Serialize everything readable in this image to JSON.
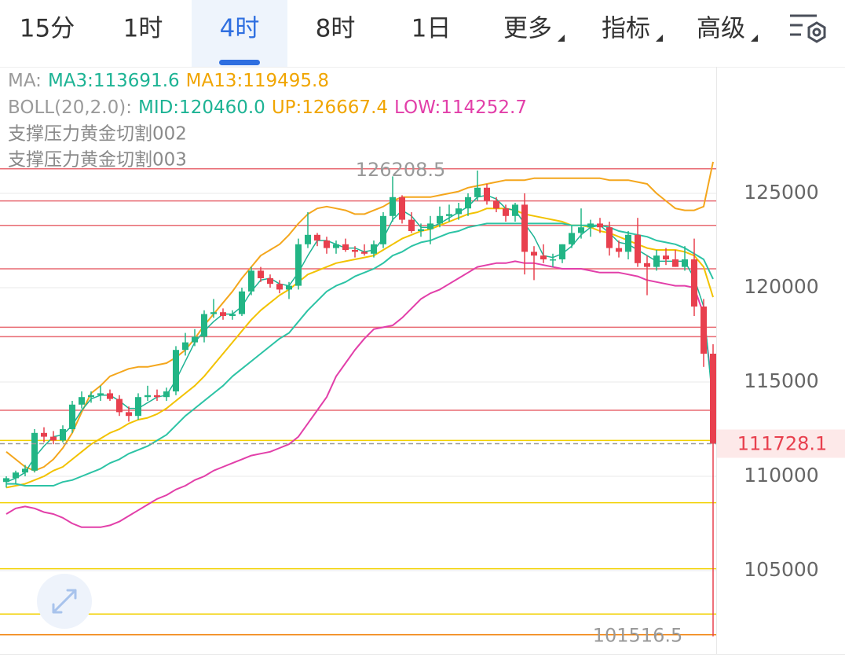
{
  "tabs": [
    {
      "label": "15分"
    },
    {
      "label": "1时"
    },
    {
      "label": "4时",
      "selected": true
    },
    {
      "label": "8时"
    },
    {
      "label": "1日"
    },
    {
      "label": "更多",
      "menu": true
    },
    {
      "label": "指标",
      "menu": true
    },
    {
      "label": "高级",
      "menu": true
    }
  ],
  "chart_data": {
    "type": "candlestick",
    "indicators": [
      {
        "label": "MA:",
        "items": [
          {
            "text": "MA3:113691.6",
            "color": "#1db394"
          },
          {
            "text": "MA13:119495.8",
            "color": "#f0a500"
          }
        ]
      },
      {
        "label": "BOLL(20,2.0):",
        "items": [
          {
            "text": "MID:120460.0",
            "color": "#1db394"
          },
          {
            "text": "UP:126667.4",
            "color": "#f0a500"
          },
          {
            "text": "LOW:114252.7",
            "color": "#e23fa9"
          }
        ]
      }
    ],
    "studies": [
      "支撑压力黄金切割002",
      "支撑压力黄金切割003"
    ],
    "ylim": [
      100667,
      131708
    ],
    "yticks": [
      125000,
      120000,
      115000,
      110000,
      105000
    ],
    "grid": true,
    "up_color": "#22b585",
    "down_color": "#e8404e",
    "open": [
      109700,
      109900,
      110200,
      110300,
      112300,
      112100,
      111900,
      112500,
      113800,
      114200,
      114300,
      114400,
      114100,
      113400,
      113200,
      114200,
      114300,
      114200,
      114500,
      116700,
      117100,
      117400,
      118600,
      118700,
      118500,
      118600,
      119800,
      120900,
      120500,
      120200,
      119900,
      120100,
      122300,
      122800,
      122500,
      122100,
      122300,
      122000,
      121900,
      121800,
      122300,
      123800,
      124800,
      123600,
      123000,
      123100,
      123400,
      123800,
      123900,
      124200,
      124800,
      125300,
      124600,
      124200,
      123800,
      124400,
      121900,
      121700,
      121500,
      121500,
      122300,
      122900,
      123200,
      123400,
      123200,
      122100,
      121900,
      122800,
      121300,
      121100,
      121700,
      121500,
      121100,
      121500,
      119000,
      116500
    ],
    "high": [
      110000,
      110300,
      110600,
      112500,
      112600,
      112400,
      112700,
      114000,
      114500,
      114500,
      114800,
      114600,
      114300,
      113700,
      114400,
      114800,
      114600,
      114700,
      116900,
      117600,
      117800,
      118800,
      119400,
      118900,
      118800,
      120000,
      121100,
      121100,
      120700,
      120400,
      120300,
      122600,
      124000,
      122900,
      122700,
      122500,
      122600,
      122200,
      122300,
      122500,
      124000,
      125900,
      124900,
      124000,
      123400,
      123800,
      124300,
      124400,
      124500,
      125000,
      126208.5,
      125500,
      124800,
      124400,
      124500,
      125000,
      122200,
      122300,
      121800,
      122300,
      123300,
      124200,
      123600,
      123700,
      123500,
      122500,
      123000,
      123700,
      121700,
      122000,
      122100,
      122000,
      122200,
      122600,
      119400,
      117000
    ],
    "low": [
      109400,
      109600,
      110000,
      110200,
      111800,
      111700,
      111800,
      112300,
      113600,
      113900,
      114000,
      114000,
      113200,
      112900,
      113000,
      114000,
      114000,
      114000,
      114300,
      116400,
      116900,
      117100,
      118400,
      118300,
      118300,
      118500,
      119600,
      120300,
      120000,
      119700,
      119400,
      119900,
      122100,
      122200,
      121800,
      121800,
      121900,
      121600,
      121700,
      121600,
      122100,
      123500,
      123400,
      122900,
      122700,
      122300,
      123200,
      123500,
      123600,
      123800,
      124600,
      124400,
      124000,
      123500,
      123500,
      120700,
      120400,
      121300,
      121100,
      121300,
      122100,
      122600,
      122700,
      122900,
      121700,
      121600,
      121500,
      121100,
      119600,
      120900,
      121200,
      121100,
      120900,
      118500,
      115800,
      101516.5
    ],
    "close": [
      109900,
      110200,
      110400,
      112300,
      112100,
      111900,
      112500,
      113800,
      114200,
      114300,
      114400,
      114100,
      113400,
      113200,
      114200,
      114300,
      114200,
      114500,
      116700,
      117100,
      117400,
      118600,
      118700,
      118500,
      118600,
      119800,
      120900,
      120500,
      120200,
      119900,
      120100,
      122300,
      122800,
      122500,
      122100,
      122300,
      122000,
      121900,
      121800,
      122300,
      123800,
      124800,
      123600,
      123000,
      123100,
      123400,
      123800,
      123900,
      124200,
      124800,
      125300,
      124600,
      124200,
      123800,
      124400,
      121900,
      121700,
      121500,
      121500,
      122300,
      122900,
      123200,
      123400,
      123200,
      122100,
      121900,
      122800,
      121300,
      121100,
      121700,
      121500,
      121100,
      121500,
      119000,
      116500,
      111728.1
    ],
    "lines": [
      {
        "color": "#f4a61c",
        "width": 2,
        "values": [
          111300,
          110900,
          110500,
          110300,
          110500,
          110900,
          111500,
          112300,
          113400,
          114400,
          114800,
          115300,
          115500,
          115700,
          115800,
          115800,
          115900,
          116000,
          116300,
          116700,
          117300,
          118000,
          118600,
          119200,
          119800,
          120500,
          121100,
          121700,
          122000,
          122300,
          122800,
          123400,
          123900,
          124200,
          124300,
          124200,
          124100,
          123900,
          123900,
          124100,
          124300,
          124600,
          124800,
          124800,
          124800,
          124800,
          124900,
          125000,
          125100,
          125300,
          125400,
          125500,
          125600,
          125700,
          125700,
          125700,
          125800,
          125800,
          125800,
          125800,
          125800,
          125800,
          125800,
          125800,
          125700,
          125700,
          125700,
          125600,
          125500,
          125000,
          124600,
          124200,
          124100,
          124100,
          124300,
          126667.4
        ]
      },
      {
        "color": "#f2c200",
        "width": 2,
        "values": [
          109400,
          109500,
          109600,
          109800,
          110000,
          110300,
          110500,
          110900,
          111300,
          111700,
          112000,
          112300,
          112500,
          112800,
          113000,
          113100,
          113300,
          113600,
          114000,
          114400,
          114800,
          115300,
          115900,
          116500,
          117100,
          117700,
          118300,
          118800,
          119200,
          119600,
          119900,
          120300,
          120700,
          120900,
          121100,
          121300,
          121400,
          121500,
          121600,
          121700,
          122000,
          122300,
          122600,
          122800,
          123000,
          123100,
          123300,
          123500,
          123700,
          123900,
          124000,
          124200,
          124200,
          124200,
          124100,
          123900,
          123800,
          123700,
          123600,
          123500,
          123300,
          123300,
          123200,
          123000,
          122900,
          122700,
          122500,
          122300,
          122100,
          122000,
          122000,
          122000,
          121900,
          121700,
          121100,
          119495.8
        ]
      },
      {
        "color": "#2cc3a5",
        "width": 2,
        "values": [
          109600,
          109600,
          109500,
          109500,
          109500,
          109500,
          109700,
          109800,
          110000,
          110200,
          110400,
          110700,
          110900,
          111200,
          111400,
          111600,
          111900,
          112200,
          112700,
          113200,
          113600,
          114000,
          114400,
          114800,
          115300,
          115700,
          116100,
          116500,
          116900,
          117300,
          117600,
          118200,
          118800,
          119300,
          119800,
          120100,
          120300,
          120600,
          120800,
          121000,
          121300,
          121700,
          121900,
          122200,
          122400,
          122500,
          122700,
          122900,
          123000,
          123200,
          123300,
          123400,
          123400,
          123400,
          123400,
          123400,
          123400,
          123400,
          123400,
          123400,
          123300,
          123300,
          123300,
          123300,
          123200,
          123000,
          122900,
          122800,
          122700,
          122500,
          122400,
          122300,
          122100,
          121800,
          121500,
          120460
        ]
      },
      {
        "color": "#e23fa9",
        "width": 2,
        "values": [
          108000,
          108300,
          108400,
          108300,
          108100,
          108000,
          107800,
          107500,
          107300,
          107300,
          107300,
          107400,
          107600,
          107900,
          108200,
          108500,
          108800,
          109000,
          109300,
          109500,
          109800,
          110000,
          110300,
          110500,
          110700,
          110900,
          111100,
          111200,
          111300,
          111500,
          111700,
          112100,
          112800,
          113500,
          114200,
          115300,
          116000,
          116700,
          117300,
          117800,
          117900,
          118000,
          118400,
          118900,
          119400,
          119700,
          119900,
          120200,
          120500,
          120800,
          121100,
          121200,
          121300,
          121300,
          121400,
          121300,
          121300,
          121200,
          121100,
          121000,
          121000,
          121000,
          120900,
          120800,
          120800,
          120800,
          120700,
          120600,
          120400,
          120300,
          120200,
          120100,
          120100,
          120000,
          118600,
          114252.7
        ]
      },
      {
        "color": "#1db394",
        "width": 1.5,
        "values": [
          109700,
          109900,
          110200,
          111000,
          111600,
          112100,
          112200,
          112700,
          113500,
          114100,
          114300,
          114300,
          114000,
          113600,
          113600,
          113900,
          114200,
          114300,
          115100,
          116100,
          117100,
          117700,
          118200,
          118600,
          118600,
          119000,
          119800,
          120400,
          120500,
          120200,
          120100,
          120800,
          121700,
          122500,
          122500,
          122300,
          122100,
          122100,
          121900,
          122000,
          122600,
          123600,
          124100,
          123800,
          123200,
          123200,
          123400,
          123700,
          124000,
          124300,
          124800,
          124900,
          124700,
          124200,
          124100,
          123400,
          122700,
          121700,
          121600,
          121800,
          122200,
          122800,
          123200,
          123300,
          122900,
          122400,
          122300,
          122000,
          121700,
          121400,
          121400,
          121400,
          121400,
          120500,
          119000,
          113691.6
        ]
      }
    ],
    "levels": [
      {
        "value": 126300,
        "color": "#e86a72"
      },
      {
        "value": 124600,
        "color": "#e86a72"
      },
      {
        "value": 123300,
        "color": "#e86a72"
      },
      {
        "value": 121000,
        "color": "#e86a72"
      },
      {
        "value": 117900,
        "color": "#e86a72"
      },
      {
        "value": 117400,
        "color": "#e86a72"
      },
      {
        "value": 113500,
        "color": "#e86a72"
      },
      {
        "value": 111900,
        "color": "#f2d100"
      },
      {
        "value": 108600,
        "color": "#f2d100"
      },
      {
        "value": 105100,
        "color": "#f2d100"
      },
      {
        "value": 102700,
        "color": "#f2d100"
      },
      {
        "value": 101600,
        "color": "#f07d00"
      }
    ],
    "high_label": 126208.5,
    "low_label": 101516.5,
    "last_price": 111728.1
  }
}
